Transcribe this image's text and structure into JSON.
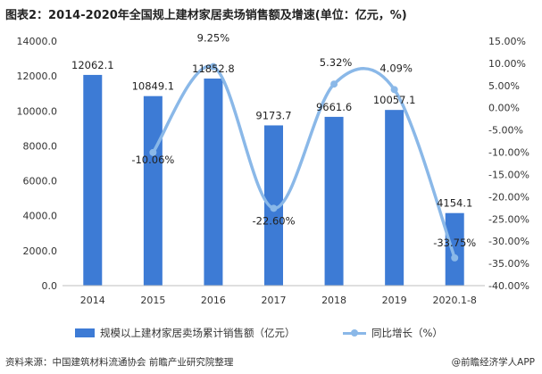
{
  "title": "图表2：2014-2020年全国规上建材家居卖场销售额及增速(单位：亿元，%)",
  "source": "资料来源：中国建筑材料流通协会 前瞻产业研究院整理",
  "credit": "@前瞻经济学人APP",
  "colors": {
    "bar": "#3d7bd5",
    "line": "#8ab8e8",
    "dot": "#8ab8e8"
  },
  "chart_data": {
    "type": "bar",
    "categories": [
      "2014",
      "2015",
      "2016",
      "2017",
      "2018",
      "2019",
      "2020.1-8"
    ],
    "series": [
      {
        "name": "规模以上建材家居卖场累计销售额（亿元）",
        "type": "bar",
        "axis": "left",
        "values": [
          12062.1,
          10849.1,
          11852.8,
          9173.7,
          9661.6,
          10057.1,
          4154.1
        ],
        "labels": [
          "12062.1",
          "10849.1",
          "11852.8",
          "9173.7",
          "9661.6",
          "10057.1",
          "4154.1"
        ]
      },
      {
        "name": "同比增长（%）",
        "type": "line",
        "axis": "right",
        "values": [
          null,
          -10.06,
          9.25,
          -22.6,
          5.32,
          4.09,
          -33.75
        ],
        "labels": [
          "",
          "-10.06%",
          "9.25%",
          "-22.60%",
          "5.32%",
          "4.09%",
          "-33.75%"
        ]
      }
    ],
    "ylim_left": [
      0,
      14000
    ],
    "yticks_left": [
      "0.0",
      "2000.0",
      "4000.0",
      "6000.0",
      "8000.0",
      "10000.0",
      "12000.0",
      "14000.0"
    ],
    "ylim_right": [
      -40,
      15
    ],
    "yticks_right": [
      "-40.00%",
      "-35.00%",
      "-30.00%",
      "-25.00%",
      "-20.00%",
      "-15.00%",
      "-10.00%",
      "-5.00%",
      "0.00%",
      "5.00%",
      "10.00%",
      "15.00%"
    ],
    "grid": false,
    "legend": "bottom"
  }
}
